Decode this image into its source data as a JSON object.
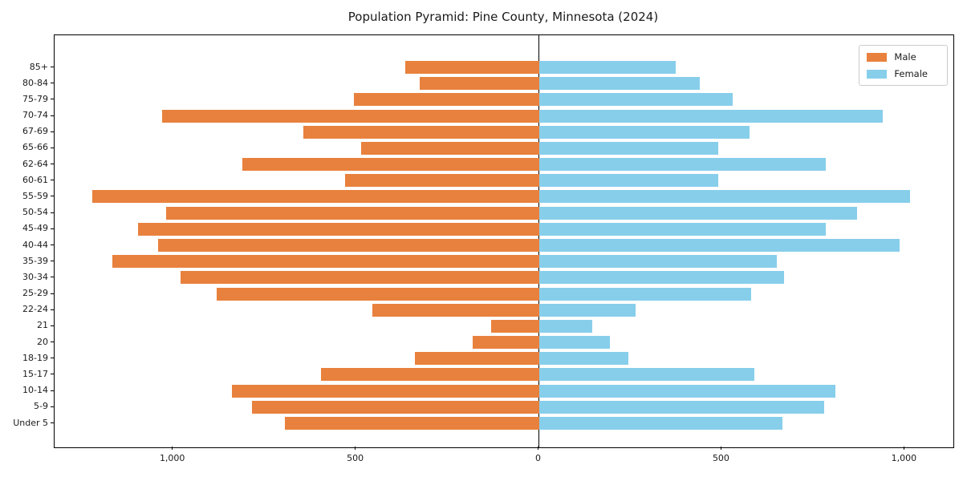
{
  "title": "Population Pyramid: Pine County, Minnesota (2024)",
  "legend": {
    "male_label": "Male",
    "female_label": "Female"
  },
  "colors": {
    "male": "#E8813D",
    "female": "#87CEEB",
    "axis": "#000000",
    "background": "#ffffff"
  },
  "chart_data": {
    "type": "bar",
    "subtype": "population-pyramid-horizontal",
    "title": "Population Pyramid: Pine County, Minnesota (2024)",
    "categories_top_to_bottom": [
      "85+",
      "80-84",
      "75-79",
      "70-74",
      "67-69",
      "65-66",
      "62-64",
      "60-61",
      "55-59",
      "50-54",
      "45-49",
      "40-44",
      "35-39",
      "30-34",
      "25-29",
      "22-24",
      "21",
      "20",
      "18-19",
      "15-17",
      "10-14",
      "5-9",
      "Under 5"
    ],
    "series": [
      {
        "name": "Male",
        "side": "left",
        "color": "#E8813D",
        "values": [
          365,
          325,
          505,
          1030,
          645,
          485,
          810,
          530,
          1220,
          1020,
          1095,
          1040,
          1165,
          980,
          880,
          455,
          130,
          180,
          340,
          595,
          840,
          785,
          695
        ]
      },
      {
        "name": "Female",
        "side": "right",
        "color": "#87CEEB",
        "values": [
          375,
          440,
          530,
          940,
          575,
          490,
          785,
          490,
          1015,
          870,
          785,
          985,
          650,
          670,
          580,
          265,
          145,
          195,
          245,
          590,
          810,
          780,
          665
        ]
      }
    ],
    "xlabel": "",
    "ylabel": "",
    "xlim": [
      -1324,
      1133
    ],
    "x_ticks": [
      {
        "value": -1000,
        "label": "1,000"
      },
      {
        "value": -500,
        "label": "500"
      },
      {
        "value": 0,
        "label": "0"
      },
      {
        "value": 500,
        "label": "500"
      },
      {
        "value": 1000,
        "label": "1,000"
      }
    ],
    "grid": false,
    "legend_position": "upper right",
    "zero_line": true,
    "note": "Male values plotted as negative (left of 0), Female positive (right of 0)"
  }
}
